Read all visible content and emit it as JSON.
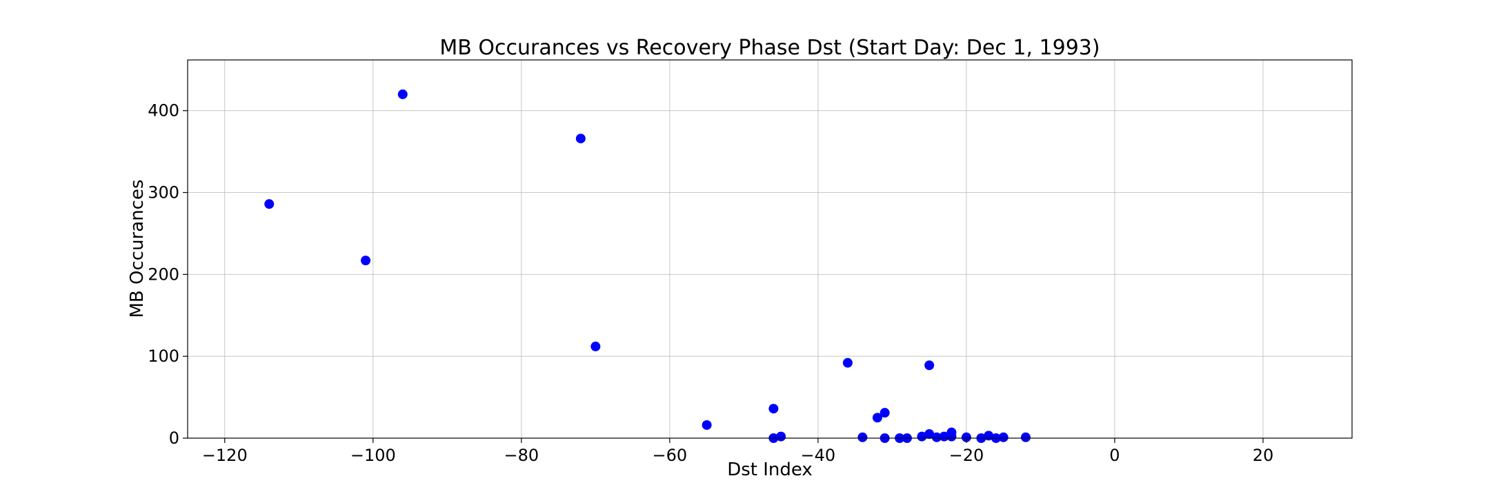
{
  "chart_data": {
    "type": "scatter",
    "title": "MB Occurances vs Recovery Phase Dst (Start Day: Dec 1, 1993)",
    "xlabel": "Dst Index",
    "ylabel": "MB Occurances",
    "xlim": [
      -125,
      32
    ],
    "ylim": [
      0,
      462
    ],
    "xticks": [
      -120,
      -100,
      -80,
      -60,
      -40,
      -20,
      0,
      20
    ],
    "xtick_labels": [
      "−120",
      "−100",
      "−80",
      "−60",
      "−40",
      "−20",
      "0",
      "20"
    ],
    "yticks": [
      0,
      100,
      200,
      300,
      400
    ],
    "ytick_labels": [
      "0",
      "100",
      "200",
      "300",
      "400"
    ],
    "grid": true,
    "marker_color": "#0000ff",
    "points": [
      {
        "x": -114,
        "y": 286
      },
      {
        "x": -101,
        "y": 217
      },
      {
        "x": -96,
        "y": 420
      },
      {
        "x": -72,
        "y": 366
      },
      {
        "x": -70,
        "y": 112
      },
      {
        "x": -55,
        "y": 16
      },
      {
        "x": -46,
        "y": 36
      },
      {
        "x": -46,
        "y": 0
      },
      {
        "x": -45,
        "y": 2
      },
      {
        "x": -36,
        "y": 92
      },
      {
        "x": -34,
        "y": 1
      },
      {
        "x": -32,
        "y": 25
      },
      {
        "x": -31,
        "y": 31
      },
      {
        "x": -31,
        "y": 0
      },
      {
        "x": -29,
        "y": 0
      },
      {
        "x": -28,
        "y": 0
      },
      {
        "x": -26,
        "y": 2
      },
      {
        "x": -25,
        "y": 89
      },
      {
        "x": -25,
        "y": 5
      },
      {
        "x": -24,
        "y": 1
      },
      {
        "x": -23,
        "y": 2
      },
      {
        "x": -22,
        "y": 7
      },
      {
        "x": -22,
        "y": 2
      },
      {
        "x": -20,
        "y": 1
      },
      {
        "x": -18,
        "y": 0
      },
      {
        "x": -17,
        "y": 3
      },
      {
        "x": -16,
        "y": 0
      },
      {
        "x": -15,
        "y": 1
      },
      {
        "x": -12,
        "y": 1
      }
    ]
  }
}
